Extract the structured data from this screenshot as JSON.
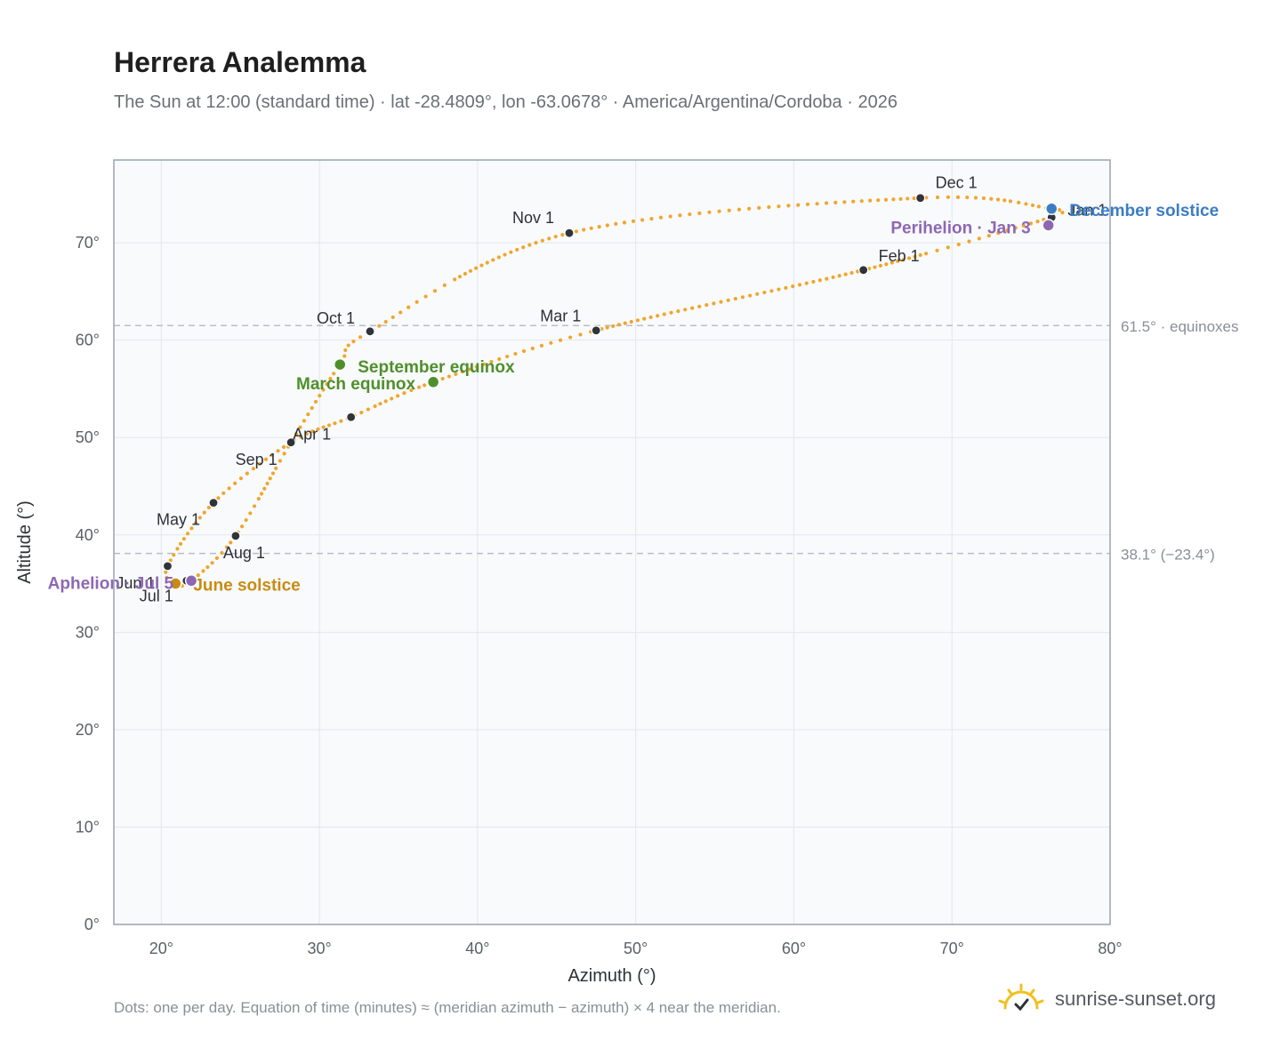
{
  "title": "Herrera Analemma",
  "subtitle": "The Sun at 12:00 (standard time) · lat -28.4809°, lon -63.0678° · America/Argentina/Cordoba · 2026",
  "footnote": "Dots: one per day. Equation of time (minutes) ≈ (meridian azimuth − azimuth) × 4 near the meridian.",
  "brand": {
    "name": "sunrise-sunset.org",
    "icon": "sun-logo-icon"
  },
  "colors": {
    "curve": "#f2a52c",
    "month_marker": "#2f343b",
    "solstice_december": "#3b7dc4",
    "solstice_june": "#c98b12",
    "equinox": "#4f8f2b",
    "apsis": "#8e67b3",
    "reference_line": "#b9bfc8",
    "plot_background": "#f8fafc"
  },
  "chart_data": {
    "type": "scatter",
    "title": "Herrera Analemma",
    "xlabel": "Azimuth (°)",
    "ylabel": "Altitude (°)",
    "xlim": [
      17,
      80
    ],
    "ylim": [
      0,
      78.5
    ],
    "x_ticks": [
      20,
      30,
      40,
      50,
      60,
      70,
      80
    ],
    "y_ticks": [
      0,
      10,
      20,
      30,
      40,
      50,
      60,
      70
    ],
    "x_tick_labels": [
      "20°",
      "30°",
      "40°",
      "50°",
      "60°",
      "70°",
      "80°"
    ],
    "y_tick_labels": [
      "0°",
      "10°",
      "20°",
      "30°",
      "40°",
      "50°",
      "60°",
      "70°"
    ],
    "grid": true,
    "reference_lines": [
      {
        "y": 61.5,
        "label": "61.5° · equinoxes"
      },
      {
        "y": 38.1,
        "label": "38.1° (−23.4°)"
      }
    ],
    "curve_anchors": [
      {
        "x": 76.3,
        "y": 72.6
      },
      {
        "x": 64.4,
        "y": 67.2
      },
      {
        "x": 47.5,
        "y": 61.0
      },
      {
        "x": 37.2,
        "y": 55.7
      },
      {
        "x": 32.0,
        "y": 52.1
      },
      {
        "x": 28.2,
        "y": 49.5
      },
      {
        "x": 23.3,
        "y": 43.3
      },
      {
        "x": 20.4,
        "y": 36.8
      },
      {
        "x": 20.9,
        "y": 35.0
      },
      {
        "x": 21.9,
        "y": 35.3
      },
      {
        "x": 24.7,
        "y": 39.9
      },
      {
        "x": 28.2,
        "y": 49.5
      },
      {
        "x": 31.3,
        "y": 57.5
      },
      {
        "x": 33.2,
        "y": 60.9
      },
      {
        "x": 45.8,
        "y": 71.0
      },
      {
        "x": 68.0,
        "y": 74.6
      },
      {
        "x": 76.3,
        "y": 73.5
      },
      {
        "x": 76.7,
        "y": 72.9
      }
    ],
    "month_markers": [
      {
        "label": "Jan 1",
        "x": 76.3,
        "y": 72.6
      },
      {
        "label": "Feb 1",
        "x": 64.4,
        "y": 67.2
      },
      {
        "label": "Mar 1",
        "x": 47.5,
        "y": 61.0
      },
      {
        "label": "Apr 1",
        "x": 28.2,
        "y": 49.5
      },
      {
        "label": "May 1",
        "x": 23.3,
        "y": 43.3
      },
      {
        "label": "Jun 1",
        "x": 20.4,
        "y": 36.8
      },
      {
        "label": "Jul 1",
        "x": 21.6,
        "y": 35.3
      },
      {
        "label": "Aug 1",
        "x": 24.7,
        "y": 39.9
      },
      {
        "label": "Sep 1",
        "x": 32.0,
        "y": 52.1
      },
      {
        "label": "Oct 1",
        "x": 33.2,
        "y": 60.9
      },
      {
        "label": "Nov 1",
        "x": 45.8,
        "y": 71.0
      },
      {
        "label": "Dec 1",
        "x": 68.0,
        "y": 74.6
      }
    ],
    "events": [
      {
        "label": "December solstice",
        "x": 76.3,
        "y": 73.5,
        "kind": "solstice_december"
      },
      {
        "label": "June solstice",
        "x": 20.9,
        "y": 35.0,
        "kind": "solstice_june"
      },
      {
        "label": "September equinox",
        "x": 31.3,
        "y": 57.5,
        "kind": "equinox"
      },
      {
        "label": "March equinox",
        "x": 37.2,
        "y": 55.7,
        "kind": "equinox"
      },
      {
        "label": "Perihelion · Jan 3",
        "x": 76.1,
        "y": 71.8,
        "kind": "apsis"
      },
      {
        "label": "Aphelion · Jul 5",
        "x": 21.9,
        "y": 35.3,
        "kind": "apsis"
      }
    ]
  }
}
